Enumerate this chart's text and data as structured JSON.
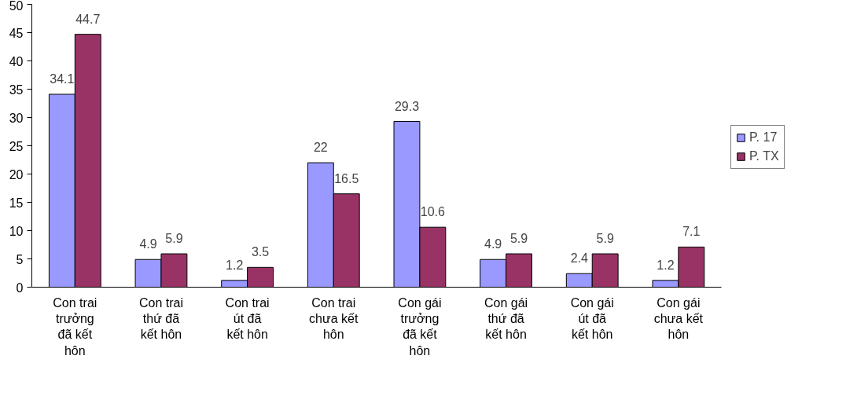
{
  "chart_data": {
    "type": "bar",
    "categories": [
      "Con trai trưởng đã kết hôn",
      "Con trai thứ đã kết hôn",
      "Con trai út đã kết hôn",
      "Con trai chưa kết hôn",
      "Con gái trưởng đã kết hôn",
      "Con gái thứ đã kết hôn",
      "Con gái út đã kết hôn",
      "Con gái chưa kết hôn"
    ],
    "series": [
      {
        "name": "P. 17",
        "color": "#9999ff",
        "values": [
          34.1,
          4.9,
          1.2,
          22,
          29.3,
          4.9,
          2.4,
          1.2
        ]
      },
      {
        "name": "P. TX",
        "color": "#993366",
        "values": [
          44.7,
          5.9,
          3.5,
          16.5,
          10.6,
          5.9,
          5.9,
          7.1
        ]
      }
    ],
    "ylim": [
      0,
      50
    ],
    "yticks": [
      0,
      5,
      10,
      15,
      20,
      25,
      30,
      35,
      40,
      45,
      50
    ],
    "data_labels": true,
    "grid": false,
    "legend": "right"
  }
}
